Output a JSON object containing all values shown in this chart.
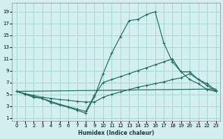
{
  "xlabel": "Humidex (Indice chaleur)",
  "bg_color": "#d4efef",
  "grid_color": "#a8d4d4",
  "line_color": "#1a6b5a",
  "xlim": [
    -0.5,
    23.5
  ],
  "ylim": [
    0.5,
    20.5
  ],
  "xticks": [
    0,
    1,
    2,
    3,
    4,
    5,
    6,
    7,
    8,
    9,
    10,
    11,
    12,
    13,
    14,
    15,
    16,
    17,
    18,
    19,
    20,
    21,
    22,
    23
  ],
  "yticks": [
    1,
    3,
    5,
    7,
    9,
    11,
    13,
    15,
    17,
    19
  ],
  "line1_x": [
    0,
    1,
    2,
    3,
    4,
    5,
    6,
    7,
    8,
    9,
    10,
    11,
    12,
    13,
    14,
    15,
    16,
    17,
    18,
    19,
    20,
    21,
    22,
    23
  ],
  "line1_y": [
    5.5,
    5.0,
    4.5,
    4.3,
    3.6,
    3.2,
    2.8,
    2.3,
    1.8,
    4.6,
    8.5,
    12.0,
    14.8,
    17.5,
    17.7,
    18.5,
    19.0,
    13.7,
    10.5,
    8.8,
    7.5,
    6.8,
    5.8,
    5.5
  ],
  "line2_x": [
    0,
    1,
    2,
    3,
    4,
    5,
    6,
    7,
    8,
    9,
    10,
    11,
    12,
    13,
    14,
    15,
    16,
    17,
    18,
    19,
    20,
    21,
    22,
    23
  ],
  "line2_y": [
    5.5,
    5.1,
    4.6,
    4.3,
    3.8,
    3.3,
    2.9,
    2.5,
    2.1,
    4.8,
    7.0,
    7.5,
    8.0,
    8.5,
    9.0,
    9.5,
    10.0,
    10.5,
    11.0,
    8.8,
    8.8,
    7.5,
    6.5,
    5.5
  ],
  "line3_x": [
    0,
    1,
    2,
    3,
    4,
    5,
    6,
    7,
    8,
    9,
    10,
    11,
    12,
    13,
    14,
    15,
    16,
    17,
    18,
    19,
    20,
    21,
    22,
    23
  ],
  "line3_y": [
    5.5,
    5.1,
    4.8,
    4.5,
    4.3,
    4.1,
    4.0,
    3.8,
    3.7,
    3.7,
    4.5,
    5.0,
    5.4,
    5.8,
    6.2,
    6.5,
    6.8,
    7.1,
    7.5,
    7.8,
    8.5,
    7.5,
    6.8,
    5.7
  ],
  "line4_x": [
    0,
    23
  ],
  "line4_y": [
    5.5,
    5.9
  ]
}
